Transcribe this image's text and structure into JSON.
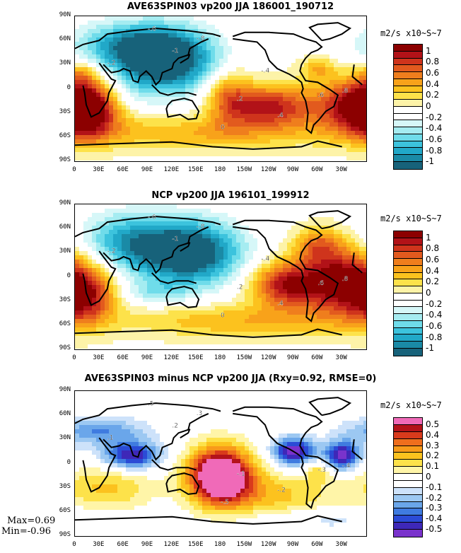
{
  "lat_labels": [
    "90N",
    "60N",
    "30N",
    "0",
    "30S",
    "60S",
    "90S"
  ],
  "lon_labels": [
    "0",
    "30E",
    "60E",
    "90E",
    "120E",
    "150E",
    "180",
    "150W",
    "120W",
    "90W",
    "60W",
    "30W"
  ],
  "units": "m2/s x10~S~7",
  "stats": {
    "max": "Max=0.69",
    "min": "Min=-0.96"
  },
  "colors": {
    "full": [
      "#17627a",
      "#1a8aa6",
      "#21a8c8",
      "#3cc3dd",
      "#6fdcea",
      "#a5ecf1",
      "#d6f7f8",
      "#ffffff",
      "#ffffff",
      "#fdf3a8",
      "#fde24a",
      "#fcc21e",
      "#f8a21a",
      "#ef7e1d",
      "#e25a1e",
      "#cf341c",
      "#b21218",
      "#8c0000"
    ],
    "diff": [
      "#7a33cc",
      "#3e28b8",
      "#2b4bd6",
      "#3f7be0",
      "#6aa6ea",
      "#9cc8f2",
      "#cde2fa",
      "#ffffff",
      "#ffffff",
      "#fff5a8",
      "#fde24a",
      "#fcc21e",
      "#f89a1a",
      "#ef6e1d",
      "#d93a1c",
      "#b4121a",
      "#f06ab8"
    ]
  },
  "chart_data": [
    {
      "type": "heatmap",
      "title": "AVE63SPIN03 vp200 JJA 186001_190712",
      "variable": "vp200",
      "season": "JJA",
      "colorbar": {
        "labels": [
          "1",
          "0.8",
          "0.6",
          "0.4",
          "0.2",
          "0",
          "-0.2",
          "-0.4",
          "-0.6",
          "-0.8",
          "-1"
        ],
        "range": [
          -1,
          1
        ]
      },
      "contour_labels": [
        "-.6",
        "-.8",
        "-1",
        "-.2",
        ".2",
        ".4",
        ".6",
        ".8",
        "0",
        "-.4"
      ],
      "features": [
        {
          "name": "negative center",
          "lon": 110,
          "lat": 30,
          "value": -1.0
        },
        {
          "name": "positive center",
          "lon": -120,
          "lat": -20,
          "value": 0.8
        },
        {
          "name": "positive center",
          "lon": -10,
          "lat": -25,
          "value": 1.0
        },
        {
          "name": "positive band",
          "lon": -150,
          "lat": -15,
          "value": 0.6
        },
        {
          "name": "positive center",
          "lon": 15,
          "lat": -25,
          "value": 0.9
        }
      ]
    },
    {
      "type": "heatmap",
      "title": "NCP vp200 JJA 196101_199912",
      "variable": "vp200",
      "season": "JJA",
      "colorbar": {
        "labels": [
          "1",
          "0.8",
          "0.6",
          "0.4",
          "0.2",
          "0",
          "-0.2",
          "-0.4",
          "-0.6",
          "-0.8",
          "-1"
        ],
        "range": [
          -1,
          1
        ]
      },
      "contour_labels": [
        "-.6",
        "-.8",
        "-1",
        "-.2",
        ".2",
        ".4",
        ".6",
        ".8",
        "0",
        "-.4"
      ],
      "features": [
        {
          "name": "negative center",
          "lon": 140,
          "lat": 30,
          "value": -1.0
        },
        {
          "name": "positive center",
          "lon": -90,
          "lat": -10,
          "value": 0.8
        },
        {
          "name": "positive center",
          "lon": -30,
          "lat": -10,
          "value": 1.0
        },
        {
          "name": "positive center",
          "lon": 15,
          "lat": -25,
          "value": 0.9
        }
      ]
    },
    {
      "type": "heatmap",
      "title": "AVE63SPIN03 minus NCP vp200 JJA (Rxy=0.92, RMSE=0)",
      "variable": "vp200 difference",
      "season": "JJA",
      "stats": {
        "Rxy": 0.92,
        "RMSE": 0,
        "max": 0.69,
        "min": -0.96
      },
      "colorbar": {
        "labels": [
          "0.5",
          "0.4",
          "0.3",
          "0.2",
          "0.1",
          "0",
          "-0.1",
          "-0.2",
          "-0.3",
          "-0.4",
          "-0.5"
        ],
        "range": [
          -0.5,
          0.5
        ]
      },
      "contour_labels": [
        ".5",
        ".3",
        ".2",
        ".1",
        "-.1",
        "-.2",
        "-.3",
        "-.4",
        "-.5"
      ],
      "features": [
        {
          "name": "positive center",
          "lon": 180,
          "lat": -15,
          "value": 0.69
        },
        {
          "name": "negative center",
          "lon": 70,
          "lat": 10,
          "value": -0.5
        },
        {
          "name": "negative center",
          "lon": -90,
          "lat": 10,
          "value": -0.5
        },
        {
          "name": "negative center",
          "lon": -30,
          "lat": 10,
          "value": -0.5
        }
      ]
    }
  ]
}
